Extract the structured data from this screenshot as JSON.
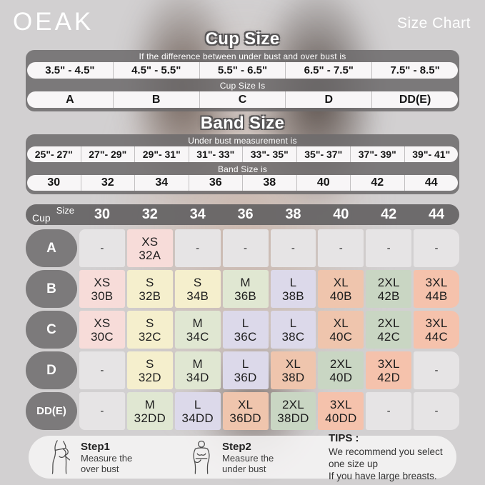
{
  "brand": "OEAK",
  "page_title": "Size Chart",
  "cup_section": {
    "title": "Cup Size",
    "condition_header": "If the difference between under bust and over bust is",
    "ranges": [
      "3.5\" - 4.5\"",
      "4.5\" - 5.5\"",
      "5.5\" - 6.5\"",
      "6.5\" - 7.5\"",
      "7.5\" - 8.5\""
    ],
    "result_header": "Cup Size Is",
    "cups": [
      "A",
      "B",
      "C",
      "D",
      "DD(E)"
    ]
  },
  "band_section": {
    "title": "Band Size",
    "condition_header": "Under bust measurement is",
    "ranges": [
      "25\"- 27\"",
      "27\"- 29\"",
      "29\"- 31\"",
      "31\"- 33\"",
      "33\"- 35\"",
      "35\"- 37\"",
      "37\"- 39\"",
      "39\"- 41\""
    ],
    "result_header": "Band Size is",
    "bands": [
      "30",
      "32",
      "34",
      "36",
      "38",
      "40",
      "42",
      "44"
    ]
  },
  "palette": {
    "pink": "#f7dcd9",
    "yellow": "#f5efcd",
    "sage": "#e0e7d2",
    "lavender": "#dcd9ea",
    "peach": "#efc5ad",
    "sage2": "#c9d6c3",
    "salmon": "#f5c2ac",
    "empty": "#e6e4e5"
  },
  "matrix": {
    "corner_top": "Size",
    "corner_bottom": "Cup",
    "columns": [
      "30",
      "32",
      "34",
      "36",
      "38",
      "40",
      "42",
      "44"
    ],
    "rows": [
      {
        "label": "A",
        "cells": [
          {
            "size": "-",
            "code": "",
            "color": "empty"
          },
          {
            "size": "XS",
            "code": "32A",
            "color": "pink"
          },
          {
            "size": "-",
            "code": "",
            "color": "empty"
          },
          {
            "size": "-",
            "code": "",
            "color": "empty"
          },
          {
            "size": "-",
            "code": "",
            "color": "empty"
          },
          {
            "size": "-",
            "code": "",
            "color": "empty"
          },
          {
            "size": "-",
            "code": "",
            "color": "empty"
          },
          {
            "size": "-",
            "code": "",
            "color": "empty"
          }
        ]
      },
      {
        "label": "B",
        "cells": [
          {
            "size": "XS",
            "code": "30B",
            "color": "pink"
          },
          {
            "size": "S",
            "code": "32B",
            "color": "yellow"
          },
          {
            "size": "S",
            "code": "34B",
            "color": "yellow"
          },
          {
            "size": "M",
            "code": "36B",
            "color": "sage"
          },
          {
            "size": "L",
            "code": "38B",
            "color": "lavender"
          },
          {
            "size": "XL",
            "code": "40B",
            "color": "peach"
          },
          {
            "size": "2XL",
            "code": "42B",
            "color": "sage2"
          },
          {
            "size": "3XL",
            "code": "44B",
            "color": "salmon"
          }
        ]
      },
      {
        "label": "C",
        "cells": [
          {
            "size": "XS",
            "code": "30C",
            "color": "pink"
          },
          {
            "size": "S",
            "code": "32C",
            "color": "yellow"
          },
          {
            "size": "M",
            "code": "34C",
            "color": "sage"
          },
          {
            "size": "L",
            "code": "36C",
            "color": "lavender"
          },
          {
            "size": "L",
            "code": "38C",
            "color": "lavender"
          },
          {
            "size": "XL",
            "code": "40C",
            "color": "peach"
          },
          {
            "size": "2XL",
            "code": "42C",
            "color": "sage2"
          },
          {
            "size": "3XL",
            "code": "44C",
            "color": "salmon"
          }
        ]
      },
      {
        "label": "D",
        "cells": [
          {
            "size": "-",
            "code": "",
            "color": "empty"
          },
          {
            "size": "S",
            "code": "32D",
            "color": "yellow"
          },
          {
            "size": "M",
            "code": "34D",
            "color": "sage"
          },
          {
            "size": "L",
            "code": "36D",
            "color": "lavender"
          },
          {
            "size": "XL",
            "code": "38D",
            "color": "peach"
          },
          {
            "size": "2XL",
            "code": "40D",
            "color": "sage2"
          },
          {
            "size": "3XL",
            "code": "42D",
            "color": "salmon"
          },
          {
            "size": "-",
            "code": "",
            "color": "empty"
          }
        ]
      },
      {
        "label": "DD(E)",
        "cells": [
          {
            "size": "-",
            "code": "",
            "color": "empty"
          },
          {
            "size": "M",
            "code": "32DD",
            "color": "sage"
          },
          {
            "size": "L",
            "code": "34DD",
            "color": "lavender"
          },
          {
            "size": "XL",
            "code": "36DD",
            "color": "peach"
          },
          {
            "size": "2XL",
            "code": "38DD",
            "color": "sage2"
          },
          {
            "size": "3XL",
            "code": "40DD",
            "color": "salmon"
          },
          {
            "size": "-",
            "code": "",
            "color": "empty"
          },
          {
            "size": "-",
            "code": "",
            "color": "empty"
          }
        ]
      }
    ]
  },
  "footer": {
    "steps": [
      {
        "label": "Step1",
        "line1": "Measure the",
        "line2": "over bust",
        "icon": "over-bust-figure-icon"
      },
      {
        "label": "Step2",
        "line1": "Measure the",
        "line2": "under bust",
        "icon": "under-bust-figure-icon"
      }
    ],
    "tips_label": "TIPS :",
    "tips_line1": "We recommend you select one size up",
    "tips_line2": "If you have large breasts."
  },
  "chart_data": [
    {
      "type": "table",
      "title": "Cup Size",
      "condition": "If the difference between under bust and over bust is",
      "columns": [
        "3.5\" - 4.5\"",
        "4.5\" - 5.5\"",
        "5.5\" - 6.5\"",
        "6.5\" - 7.5\"",
        "7.5\" - 8.5\""
      ],
      "result_label": "Cup Size Is",
      "values": [
        "A",
        "B",
        "C",
        "D",
        "DD(E)"
      ]
    },
    {
      "type": "table",
      "title": "Band Size",
      "condition": "Under bust measurement is",
      "columns": [
        "25\"- 27\"",
        "27\"- 29\"",
        "29\"- 31\"",
        "31\"- 33\"",
        "33\"- 35\"",
        "35\"- 37\"",
        "37\"- 39\"",
        "39\"- 41\""
      ],
      "result_label": "Band Size is",
      "values": [
        "30",
        "32",
        "34",
        "36",
        "38",
        "40",
        "42",
        "44"
      ]
    },
    {
      "type": "table",
      "title": "Cup x Band size matrix",
      "columns": [
        "30",
        "32",
        "34",
        "36",
        "38",
        "40",
        "42",
        "44"
      ],
      "rows": [
        {
          "cup": "A",
          "cells": [
            "-",
            "XS 32A",
            "-",
            "-",
            "-",
            "-",
            "-",
            "-"
          ]
        },
        {
          "cup": "B",
          "cells": [
            "XS 30B",
            "S 32B",
            "S 34B",
            "M 36B",
            "L 38B",
            "XL 40B",
            "2XL 42B",
            "3XL 44B"
          ]
        },
        {
          "cup": "C",
          "cells": [
            "XS 30C",
            "S 32C",
            "M 34C",
            "L 36C",
            "L 38C",
            "XL 40C",
            "2XL 42C",
            "3XL 44C"
          ]
        },
        {
          "cup": "D",
          "cells": [
            "-",
            "S 32D",
            "M 34D",
            "L 36D",
            "XL 38D",
            "2XL 40D",
            "3XL 42D",
            "-"
          ]
        },
        {
          "cup": "DD(E)",
          "cells": [
            "-",
            "M 32DD",
            "L 34DD",
            "XL 36DD",
            "2XL 38DD",
            "3XL 40DD",
            "-",
            "-"
          ]
        }
      ]
    }
  ]
}
